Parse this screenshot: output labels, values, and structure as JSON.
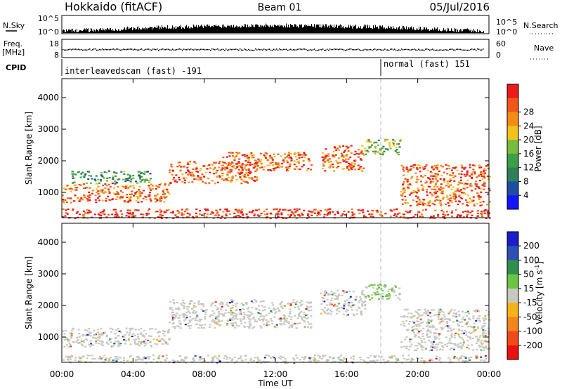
{
  "header": {
    "station": "Hokkaido (fitACF)",
    "beam": "Beam 01",
    "date": "05/Jul/2016"
  },
  "strips": {
    "nsky_label": "N.Sky",
    "nsky_ticks": [
      "10^5",
      "10^0"
    ],
    "nsearch_label": "N.Search",
    "nsearch_ticks": [
      "10^5",
      "10^0"
    ],
    "freq_label_1": "Freq.",
    "freq_label_2": "[MHz]",
    "freq_ticks": [
      "18",
      "8"
    ],
    "nave_label": "Nave",
    "nave_ticks": [
      "60",
      "0"
    ],
    "cpid_label": "CPID",
    "cpid_segments": [
      {
        "text": "interleavedscan (fast) -191",
        "start_hour": 0
      },
      {
        "text": "normal (fast) 151",
        "start_hour": 18
      }
    ]
  },
  "chart_data": [
    {
      "type": "heatmap",
      "panel": "power",
      "ylabel": "Slant Range [km]",
      "ylim": [
        200,
        4600
      ],
      "yticks": [
        "1000",
        "2000",
        "3000",
        "4000"
      ],
      "xlim": [
        0,
        24
      ],
      "colorbar_label": "Power [dB]",
      "colorbar_ticks": [
        "4",
        "8",
        "12",
        "16",
        "20",
        "24",
        "28"
      ],
      "colors": [
        "#1414ff",
        "#1c4fa0",
        "#2f7f5b",
        "#3c9e46",
        "#76bd3d",
        "#f1c21c",
        "#f28d14",
        "#f0581b",
        "#ee1a1a"
      ],
      "regions": [
        {
          "t0": 0,
          "t1": 6,
          "r0": 700,
          "r1": 1300,
          "level": 26
        },
        {
          "t0": 0.5,
          "t1": 5,
          "r0": 1300,
          "r1": 1700,
          "level": 14
        },
        {
          "t0": 6,
          "t1": 11,
          "r0": 1300,
          "r1": 2000,
          "level": 25
        },
        {
          "t0": 9,
          "t1": 14,
          "r0": 1700,
          "r1": 2300,
          "level": 26
        },
        {
          "t0": 14.5,
          "t1": 17,
          "r0": 1700,
          "r1": 2500,
          "level": 24
        },
        {
          "t0": 17,
          "t1": 19,
          "r0": 2200,
          "r1": 2700,
          "level": 16
        },
        {
          "t0": 19,
          "t1": 24,
          "r0": 600,
          "r1": 1900,
          "level": 26
        },
        {
          "t0": 0,
          "t1": 24,
          "r0": 200,
          "r1": 500,
          "level": 28
        }
      ]
    },
    {
      "type": "heatmap",
      "panel": "velocity",
      "ylabel": "Slant Range [km]",
      "ylim": [
        200,
        4600
      ],
      "yticks": [
        "1000",
        "2000",
        "3000",
        "4000"
      ],
      "xlim": [
        0,
        24
      ],
      "xticks": [
        "00:00",
        "04:00",
        "08:00",
        "12:00",
        "16:00",
        "20:00",
        "00:00"
      ],
      "xlabel": "Time UT",
      "colorbar_label": "Velocity [m s",
      "colorbar_label_sup": "-1",
      "colorbar_label_end": "]",
      "colorbar_ticks": [
        "200",
        "100",
        "50",
        "15",
        "-15",
        "-50",
        "-100",
        "-200"
      ],
      "colors": [
        "#1c1cc8",
        "#2e4fb4",
        "#2f8f4f",
        "#6cc443",
        "#c8c8c0",
        "#f4b418",
        "#f2861a",
        "#f04a1a",
        "#ea1010"
      ],
      "regions": [
        {
          "t0": 0,
          "t1": 6,
          "r0": 700,
          "r1": 1300,
          "vel": 0
        },
        {
          "t0": 6,
          "t1": 14,
          "r0": 1300,
          "r1": 2200,
          "vel": 0
        },
        {
          "t0": 14.5,
          "t1": 17,
          "r0": 1700,
          "r1": 2500,
          "vel": 0
        },
        {
          "t0": 17,
          "t1": 19,
          "r0": 2200,
          "r1": 2700,
          "vel": 40
        },
        {
          "t0": 19,
          "t1": 24,
          "r0": 600,
          "r1": 1900,
          "vel": 0
        },
        {
          "t0": 0,
          "t1": 24,
          "r0": 200,
          "r1": 450,
          "vel": 0
        }
      ]
    }
  ]
}
